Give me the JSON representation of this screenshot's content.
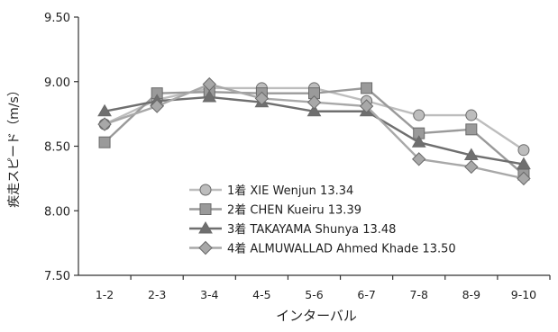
{
  "chart_data": {
    "type": "line",
    "title": "",
    "xlabel": "インターバル",
    "ylabel": "疾走スピード（m/s）",
    "categories": [
      "1-2",
      "2-3",
      "3-4",
      "4-5",
      "5-6",
      "6-7",
      "7-8",
      "8-9",
      "9-10"
    ],
    "ylim": [
      7.5,
      9.5
    ],
    "yticks": [
      "7.50",
      "8.00",
      "8.50",
      "9.00",
      "9.50"
    ],
    "grid": false,
    "legend_position": "bottom-center, inside plot",
    "series": [
      {
        "name": "1着 XIE Wenjun 13.34",
        "marker": "circle",
        "color": "#bdbdbd",
        "values": [
          8.67,
          8.86,
          8.95,
          8.95,
          8.95,
          8.85,
          8.74,
          8.74,
          8.47
        ]
      },
      {
        "name": "2着 CHEN Kueiru 13.39",
        "marker": "square",
        "color": "#9a9a9a",
        "values": [
          8.53,
          8.91,
          8.92,
          8.91,
          8.91,
          8.95,
          8.6,
          8.63,
          8.28
        ]
      },
      {
        "name": "3着 TAKAYAMA Shunya 13.48",
        "marker": "triangle",
        "color": "#6f6f6f",
        "values": [
          8.77,
          8.85,
          8.88,
          8.84,
          8.77,
          8.77,
          8.53,
          8.43,
          8.36
        ]
      },
      {
        "name": "4着 ALMUWALLAD Ahmed Khade 13.50",
        "marker": "diamond",
        "color": "#a8a8a8",
        "values": [
          8.67,
          8.81,
          8.98,
          8.87,
          8.84,
          8.81,
          8.4,
          8.34,
          8.25
        ]
      }
    ]
  }
}
